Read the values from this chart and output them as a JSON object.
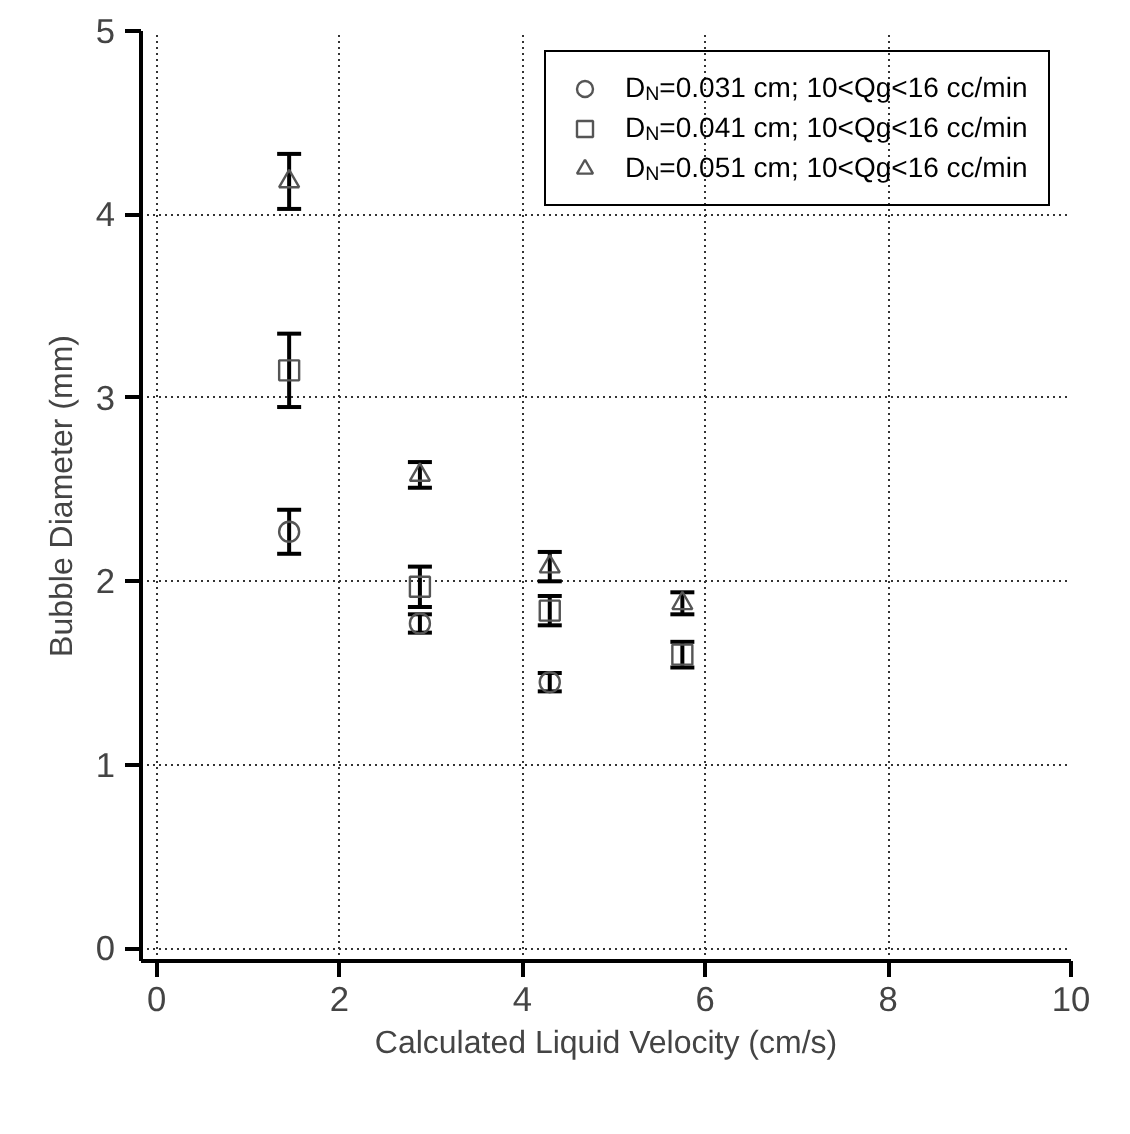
{
  "chart_data": {
    "type": "scatter",
    "xlabel": "Calculated Liquid Velocity (cm/s)",
    "ylabel": "Bubble Diameter (mm)",
    "x": [
      1.45,
      2.88,
      4.3,
      5.75
    ],
    "series": [
      {
        "name": "D$_{N}$=0.031 cm; 10<Qg<16 cc/min",
        "color": "#555555",
        "marker": "circle",
        "values": [
          2.27,
          1.77,
          1.45,
          null
        ],
        "errors": [
          0.12,
          0.05,
          0.05,
          null
        ]
      },
      {
        "name": "D$_{N}$=0.041 cm; 10<Qg<16 cc/min",
        "color": "#555555",
        "marker": "square",
        "values": [
          3.15,
          1.97,
          1.84,
          1.6
        ],
        "errors": [
          0.2,
          0.11,
          0.08,
          0.07
        ]
      },
      {
        "name": "D$_{N}$=0.051 cm; 10<Qg<16 cc/min",
        "color": "#555555",
        "marker": "triangle",
        "values": [
          4.18,
          2.58,
          2.08,
          1.88
        ],
        "errors": [
          0.15,
          0.07,
          0.08,
          0.06
        ]
      }
    ],
    "xlim": [
      -0.17,
      10
    ],
    "ylim": [
      -0.07,
      5
    ],
    "xticks": [
      0,
      2,
      4,
      6,
      8,
      10
    ],
    "yticks": [
      0,
      1,
      2,
      3,
      4,
      5
    ],
    "grid": true,
    "legend": "top right"
  }
}
